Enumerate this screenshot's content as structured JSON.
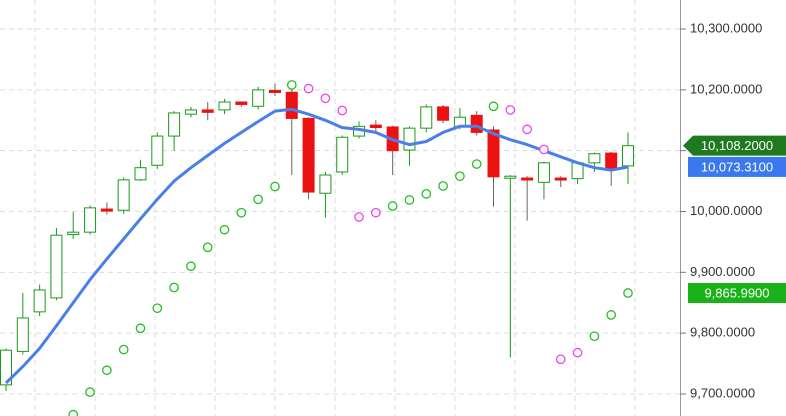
{
  "chart_data": {
    "type": "candlestick",
    "ylim": [
      9663.8,
      10347.7
    ],
    "yticks": [
      {
        "value": 10300,
        "label": "10,300.0000"
      },
      {
        "value": 10200,
        "label": "10,200.0000"
      },
      {
        "value": 10100,
        "label": null
      },
      {
        "value": 10000,
        "label": "10,000.0000"
      },
      {
        "value": 9900,
        "label": "9,900.0000"
      },
      {
        "value": 9800,
        "label": "9,800.0000"
      },
      {
        "value": 9700,
        "label": "9,700.0000"
      }
    ],
    "grid": true,
    "up_color": "#1a9a1a",
    "down_color": "#ee1111",
    "open": [
      9715,
      9770,
      9835,
      9858,
      9962,
      9966,
      10004,
      10002,
      10052,
      10076,
      10124,
      10160,
      10167,
      10167,
      10180,
      10173,
      10199,
      10196,
      10153,
      10030,
      10065,
      10124,
      10142,
      10139,
      10101,
      10137,
      10172,
      10140,
      10158,
      10134,
      10055,
      10055,
      10048,
      10055,
      10054,
      10080,
      10096,
      10075
    ],
    "high": [
      9775,
      9866,
      9880,
      9973,
      9999,
      10010,
      10015,
      10056,
      10085,
      10130,
      10165,
      10172,
      10180,
      10185,
      10180,
      10205,
      10210,
      10205,
      10155,
      10065,
      10125,
      10148,
      10150,
      10141,
      10140,
      10176,
      10175,
      10170,
      10165,
      10140,
      10060,
      10058,
      10082,
      10058,
      10082,
      10097,
      10098,
      10130
    ],
    "low": [
      9705,
      9765,
      9828,
      9854,
      9955,
      9962,
      9995,
      9996,
      10050,
      10070,
      10100,
      10155,
      10150,
      10160,
      10172,
      10168,
      10190,
      10060,
      10020,
      9990,
      10060,
      10120,
      10130,
      10060,
      10075,
      10130,
      10145,
      10135,
      10125,
      10008,
      9760,
      9985,
      10020,
      10040,
      10045,
      10065,
      10042,
      10045
    ],
    "close": [
      9772,
      9825,
      9871,
      9961,
      9966,
      10006,
      10002,
      10052,
      10072,
      10124,
      10162,
      10167,
      10163,
      10180,
      10176,
      10200,
      10196,
      10153,
      10032,
      10060,
      10122,
      10140,
      10138,
      10100,
      10137,
      10172,
      10150,
      10155,
      10130,
      10057,
      10058,
      10052,
      10080,
      10052,
      10080,
      10095,
      10070,
      10108.2
    ],
    "moving_average": {
      "color": "#4a7fe8",
      "values": [
        9718,
        9745,
        9775,
        9812,
        9850,
        9888,
        9922,
        9955,
        9988,
        10020,
        10050,
        10072,
        10092,
        10112,
        10130,
        10148,
        10165,
        10168,
        10160,
        10150,
        10138,
        10135,
        10130,
        10118,
        10110,
        10115,
        10130,
        10140,
        10140,
        10128,
        10118,
        10110,
        10100,
        10090,
        10080,
        10072,
        10068,
        10073.31
      ]
    },
    "sar": {
      "values": [
        null,
        null,
        null,
        null,
        9666,
        9703,
        9739,
        9773,
        9808,
        9841,
        9875,
        9910,
        9941,
        9970,
        9998,
        10020,
        10041,
        10208,
        10202,
        10186,
        10166,
        9991,
        9998,
        10009,
        10019,
        10029,
        10042,
        10058,
        10078,
        10173,
        10167,
        10135,
        10102,
        9757,
        9768,
        9795,
        9830,
        9865.99
      ],
      "colors": [
        null,
        null,
        null,
        null,
        "#22c022",
        "#22c022",
        "#22c022",
        "#22c022",
        "#22c022",
        "#22c022",
        "#22c022",
        "#22c022",
        "#22c022",
        "#22c022",
        "#22c022",
        "#22c022",
        "#22c022",
        "#22c022",
        "#ee44ee",
        "#ee44ee",
        "#ee44ee",
        "#ee44ee",
        "#ee44ee",
        "#22c022",
        "#22c022",
        "#22c022",
        "#22c022",
        "#22c022",
        "#22c022",
        "#22c022",
        "#ee44ee",
        "#ee44ee",
        "#ee44ee",
        "#ee44ee",
        "#ee44ee",
        "#22c022",
        "#22c022",
        "#22c022"
      ]
    },
    "price_tags": [
      {
        "value": 10108.2,
        "label": "10,108.2000",
        "color": "#1f7a1f",
        "arrow": true
      },
      {
        "value": 10073.31,
        "label": "10,073.3100",
        "color": "#3a78f0",
        "arrow": false
      },
      {
        "value": 9865.99,
        "label": "9,865.9900",
        "color": "#19b319",
        "arrow": false
      }
    ]
  }
}
